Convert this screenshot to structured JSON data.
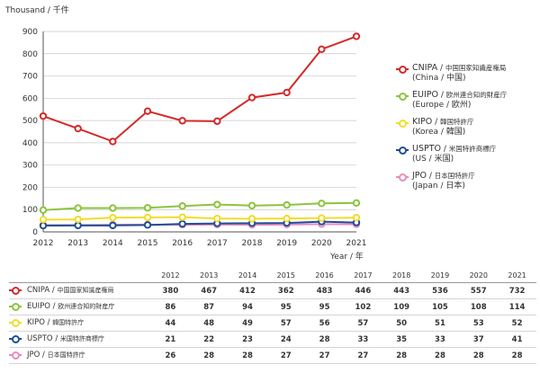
{
  "unit_label": "Thousand / 千件",
  "x_unit_label": "Year / 年",
  "chart_data": {
    "type": "line",
    "x": [
      2012,
      2013,
      2014,
      2015,
      2016,
      2017,
      2018,
      2019,
      2020,
      2021
    ],
    "ylim": [
      0,
      900
    ],
    "yticks": [
      0,
      100,
      200,
      300,
      400,
      500,
      600,
      700,
      800,
      900
    ],
    "grid": true,
    "legend_position": "right",
    "series": [
      {
        "name": "CNIPA / 中国国家知識産権局",
        "name_en": "CNIPA",
        "name_local": "中国国家知識産権局",
        "sub": "(China / 中国)",
        "color": "#d42a2a",
        "values": [
          520,
          464,
          406,
          542,
          499,
          497,
          603,
          626,
          820,
          878
        ]
      },
      {
        "name": "EUIPO / 欧州連合知的財産庁",
        "name_en": "EUIPO",
        "name_local": "欧州連合知的財産庁",
        "sub": "(Europe / 欧州)",
        "color": "#8cc43f",
        "values": [
          98,
          107,
          107,
          108,
          116,
          123,
          118,
          121,
          128,
          130
        ]
      },
      {
        "name": "KIPO / 韓国特許庁",
        "name_en": "KIPO",
        "name_local": "韓国特許庁",
        "sub": "(Korea / 韓国)",
        "color": "#f2dc2c",
        "values": [
          55,
          56,
          64,
          65,
          66,
          60,
          59,
          60,
          62,
          64
        ]
      },
      {
        "name": "USPTO / 米国特許商標庁",
        "name_en": "USPTO",
        "name_local": "米国特許商標庁",
        "sub": "(US / 米国)",
        "color": "#1f4e96",
        "values": [
          28,
          29,
          29,
          31,
          36,
          38,
          39,
          40,
          46,
          42
        ]
      },
      {
        "name": "JPO / 日本国特許庁",
        "name_en": "JPO",
        "name_local": "日本国特許庁",
        "sub": "(Japan / 日本)",
        "color": "#e88cbc",
        "values": [
          31,
          31,
          32,
          33,
          32,
          33,
          32,
          33,
          35,
          34
        ]
      }
    ],
    "table": {
      "years": [
        "2012",
        "2013",
        "2014",
        "2015",
        "2016",
        "2017",
        "2018",
        "2019",
        "2020",
        "2021"
      ],
      "rows": [
        {
          "label": "CNIPA",
          "label_local": "中国国家知識産権局",
          "color": "#d42a2a",
          "values": [
            "380",
            "467",
            "412",
            "362",
            "483",
            "446",
            "443",
            "536",
            "557",
            "732"
          ]
        },
        {
          "label": "EUIPO",
          "label_local": "欧州連合知的財産庁",
          "color": "#8cc43f",
          "values": [
            "86",
            "87",
            "94",
            "95",
            "95",
            "102",
            "109",
            "105",
            "108",
            "114"
          ]
        },
        {
          "label": "KIPO",
          "label_local": "韓国特許庁",
          "color": "#f2dc2c",
          "values": [
            "44",
            "48",
            "49",
            "57",
            "56",
            "57",
            "50",
            "51",
            "53",
            "52"
          ]
        },
        {
          "label": "USPTO",
          "label_local": "米国特許商標庁",
          "color": "#1f4e96",
          "values": [
            "21",
            "22",
            "23",
            "24",
            "28",
            "33",
            "35",
            "33",
            "37",
            "41"
          ]
        },
        {
          "label": "JPO",
          "label_local": "日本国特許庁",
          "color": "#e88cbc",
          "values": [
            "26",
            "28",
            "28",
            "27",
            "27",
            "27",
            "28",
            "28",
            "28",
            "28"
          ]
        }
      ]
    }
  }
}
